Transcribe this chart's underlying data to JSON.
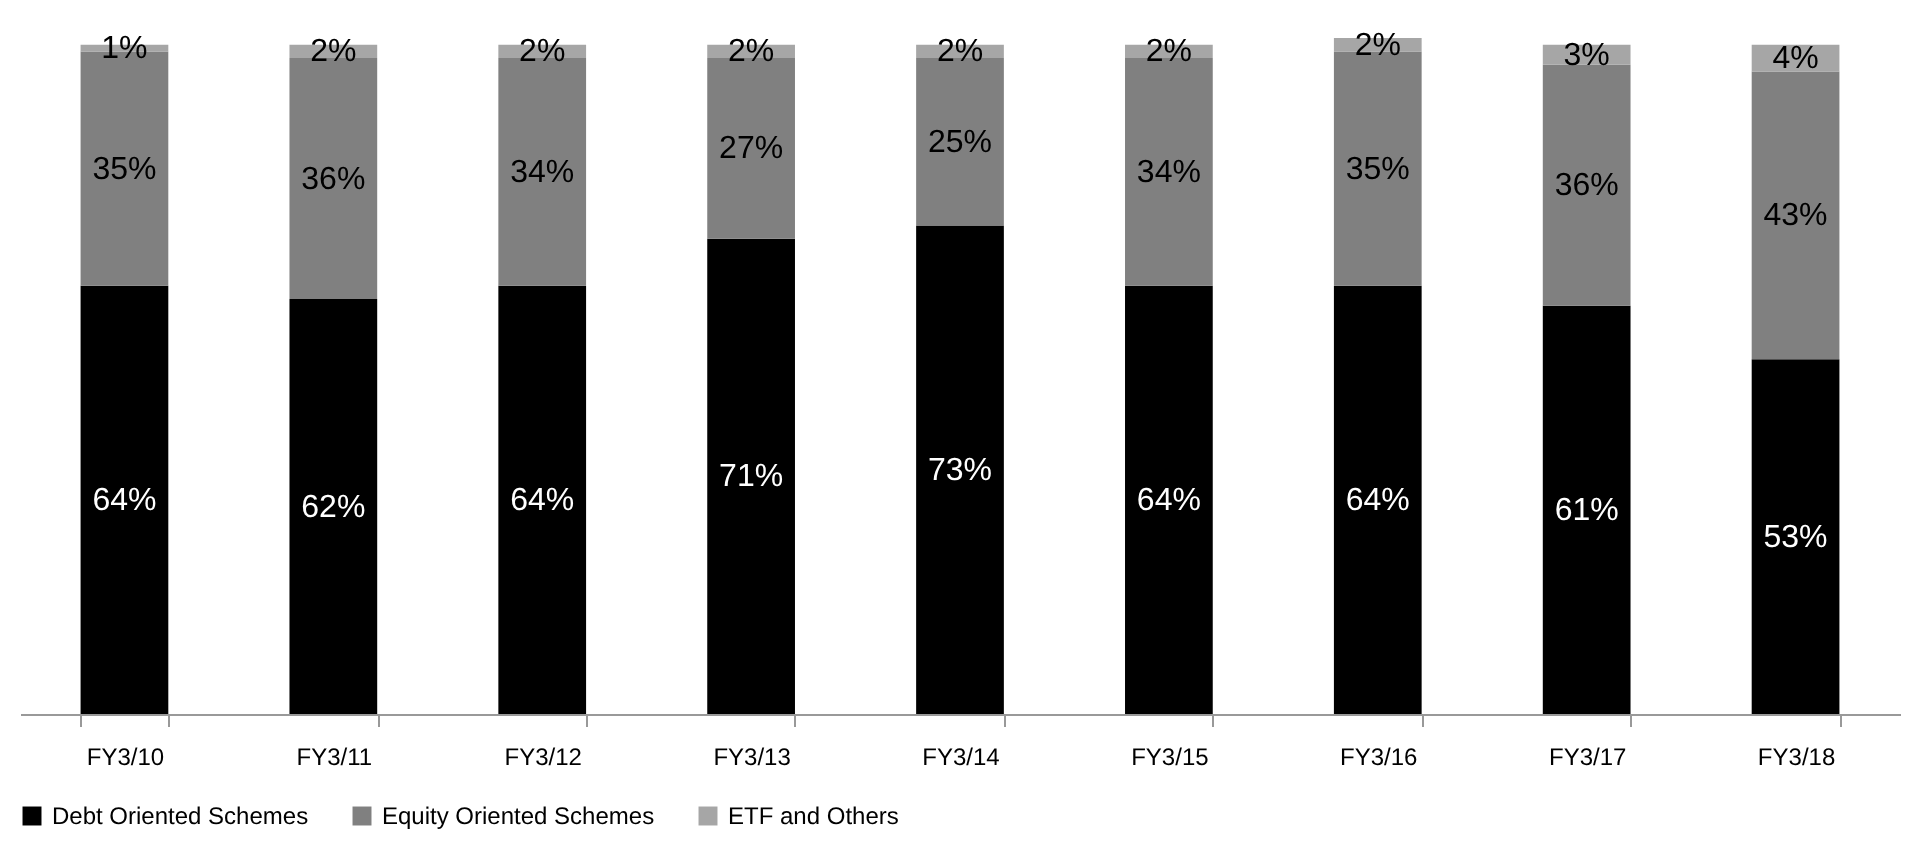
{
  "chart_data": {
    "type": "bar",
    "stacked": true,
    "legend": "bottom",
    "grid": false,
    "categories": [
      "FY3/10",
      "FY3/11",
      "FY3/12",
      "FY3/13",
      "FY3/14",
      "FY3/15",
      "FY3/16",
      "FY3/17",
      "FY3/18"
    ],
    "series": [
      {
        "name": "Debt Oriented Schemes",
        "color": "#000000",
        "values": [
          64,
          62,
          64,
          71,
          73,
          64,
          64,
          61,
          53
        ],
        "value_labels": [
          "64%",
          "62%",
          "64%",
          "71%",
          "73%",
          "64%",
          "64%",
          "61%",
          "53%"
        ]
      },
      {
        "name": "Equity Oriented Schemes",
        "color": "#808080",
        "values": [
          35,
          36,
          34,
          27,
          25,
          34,
          35,
          36,
          43
        ],
        "value_labels": [
          "35%",
          "36%",
          "34%",
          "27%",
          "25%",
          "34%",
          "35%",
          "36%",
          "43%"
        ]
      },
      {
        "name": "ETF and Others",
        "color": "#a6a6a6",
        "values": [
          1,
          2,
          2,
          2,
          2,
          2,
          2,
          3,
          4
        ],
        "value_labels": [
          "1%",
          "2%",
          "2%",
          "2%",
          "2%",
          "2%",
          "2%",
          "3%",
          "4%"
        ]
      }
    ]
  }
}
